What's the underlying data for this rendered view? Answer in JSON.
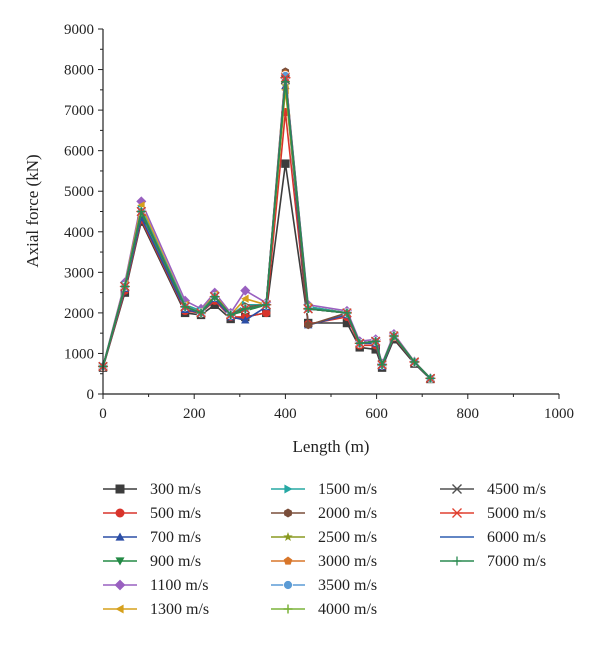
{
  "chart_data": {
    "type": "line",
    "title": "",
    "xlabel": "Length (m)",
    "ylabel": "Axial force (kN)",
    "xlim": [
      0,
      1000
    ],
    "ylim": [
      0,
      9000
    ],
    "xticks": [
      0,
      200,
      400,
      600,
      800,
      1000
    ],
    "yticks": [
      0,
      1000,
      2000,
      3000,
      4000,
      5000,
      6000,
      7000,
      8000,
      9000
    ],
    "grid": false,
    "legend_position": "bottom",
    "x": [
      0,
      48,
      84,
      180,
      215,
      245,
      280,
      312,
      358,
      400,
      450,
      535,
      563,
      598,
      612,
      638,
      683,
      718
    ],
    "series": [
      {
        "name": "300 m/s",
        "marker": "square",
        "color": "#3c3c3c",
        "values": [
          650,
          2500,
          4250,
          2000,
          1950,
          2200,
          1850,
          1900,
          2000,
          5680,
          1750,
          1750,
          1150,
          1100,
          650,
          1350,
          750,
          370
        ]
      },
      {
        "name": "500 m/s",
        "marker": "circle",
        "color": "#d8342b",
        "values": [
          660,
          2550,
          4300,
          2050,
          2000,
          2300,
          1900,
          1900,
          2000,
          6950,
          1720,
          1900,
          1200,
          1200,
          700,
          1400,
          780,
          380
        ]
      },
      {
        "name": "700 m/s",
        "marker": "triangle-up",
        "color": "#2c4ea6",
        "values": [
          670,
          2600,
          4350,
          2080,
          2000,
          2350,
          1900,
          1820,
          2150,
          7600,
          1700,
          1950,
          1250,
          1250,
          680,
          1420,
          780,
          380
        ]
      },
      {
        "name": "900 m/s",
        "marker": "triangle-down",
        "color": "#238a45",
        "values": [
          680,
          2650,
          4450,
          2150,
          2000,
          2400,
          1950,
          2050,
          2200,
          7700,
          2150,
          2000,
          1250,
          1300,
          700,
          1450,
          790,
          390
        ]
      },
      {
        "name": "1100 m/s",
        "marker": "diamond",
        "color": "#9960c0",
        "values": [
          690,
          2750,
          4750,
          2300,
          2100,
          2500,
          2000,
          2550,
          2250,
          7800,
          2200,
          2050,
          1300,
          1350,
          750,
          1480,
          800,
          390
        ]
      },
      {
        "name": "1300 m/s",
        "marker": "triangle-left",
        "color": "#d6a01c",
        "values": [
          680,
          2700,
          4650,
          2200,
          2050,
          2450,
          1950,
          2350,
          2200,
          7500,
          2150,
          2000,
          1250,
          1300,
          720,
          1450,
          790,
          385
        ]
      },
      {
        "name": "1500 m/s",
        "marker": "triangle-right",
        "color": "#26a8a4",
        "values": [
          675,
          2680,
          4550,
          2200,
          2050,
          2400,
          1950,
          2200,
          2200,
          7850,
          2150,
          2000,
          1250,
          1300,
          720,
          1440,
          790,
          385
        ]
      },
      {
        "name": "2000 m/s",
        "marker": "hexagon",
        "color": "#7a4e3a",
        "values": [
          680,
          2650,
          4500,
          2150,
          2000,
          2400,
          1950,
          2150,
          2200,
          7950,
          1700,
          2000,
          1250,
          1300,
          720,
          1430,
          790,
          385
        ]
      },
      {
        "name": "2500 m/s",
        "marker": "star",
        "color": "#8a9a20",
        "values": [
          680,
          2650,
          4500,
          2150,
          2000,
          2400,
          1950,
          2100,
          2200,
          7600,
          2100,
          2000,
          1250,
          1300,
          720,
          1430,
          790,
          385
        ]
      },
      {
        "name": "3000 m/s",
        "marker": "pentagon",
        "color": "#d8762a",
        "values": [
          680,
          2650,
          4500,
          2150,
          2000,
          2400,
          1950,
          2100,
          2200,
          7900,
          2100,
          2000,
          1250,
          1300,
          720,
          1430,
          790,
          385
        ]
      },
      {
        "name": "3500 m/s",
        "marker": "sphere",
        "color": "#5b9bd5",
        "values": [
          680,
          2650,
          4500,
          2150,
          2000,
          2400,
          1950,
          2100,
          2200,
          7850,
          2100,
          2000,
          1250,
          1300,
          720,
          1430,
          790,
          385
        ]
      },
      {
        "name": "4000 m/s",
        "marker": "plus",
        "color": "#7cb33a",
        "values": [
          680,
          2650,
          4500,
          2150,
          2000,
          2400,
          1950,
          2100,
          2200,
          7700,
          2100,
          2000,
          1250,
          1300,
          720,
          1430,
          790,
          385
        ]
      },
      {
        "name": "4500 m/s",
        "marker": "x",
        "color": "#505050",
        "values": [
          680,
          2650,
          4500,
          2150,
          2000,
          2400,
          1950,
          2100,
          2200,
          7750,
          2100,
          2000,
          1250,
          1300,
          720,
          1430,
          790,
          385
        ]
      },
      {
        "name": "5000 m/s",
        "marker": "asterisk",
        "color": "#e04030",
        "values": [
          680,
          2650,
          4500,
          2150,
          2000,
          2400,
          1950,
          2100,
          2200,
          7800,
          2100,
          2000,
          1250,
          1300,
          720,
          1430,
          790,
          385
        ]
      },
      {
        "name": "6000 m/s",
        "marker": "none",
        "color": "#2f5fb0",
        "values": [
          680,
          2650,
          4500,
          2150,
          2000,
          2400,
          1950,
          2100,
          2200,
          7800,
          2100,
          2000,
          1250,
          1300,
          720,
          1430,
          790,
          385
        ]
      },
      {
        "name": "7000 m/s",
        "marker": "cross",
        "color": "#2a8a50",
        "values": [
          680,
          2650,
          4500,
          2150,
          2000,
          2400,
          1950,
          2100,
          2200,
          7700,
          2100,
          2000,
          1250,
          1300,
          720,
          1430,
          790,
          385
        ]
      }
    ]
  }
}
